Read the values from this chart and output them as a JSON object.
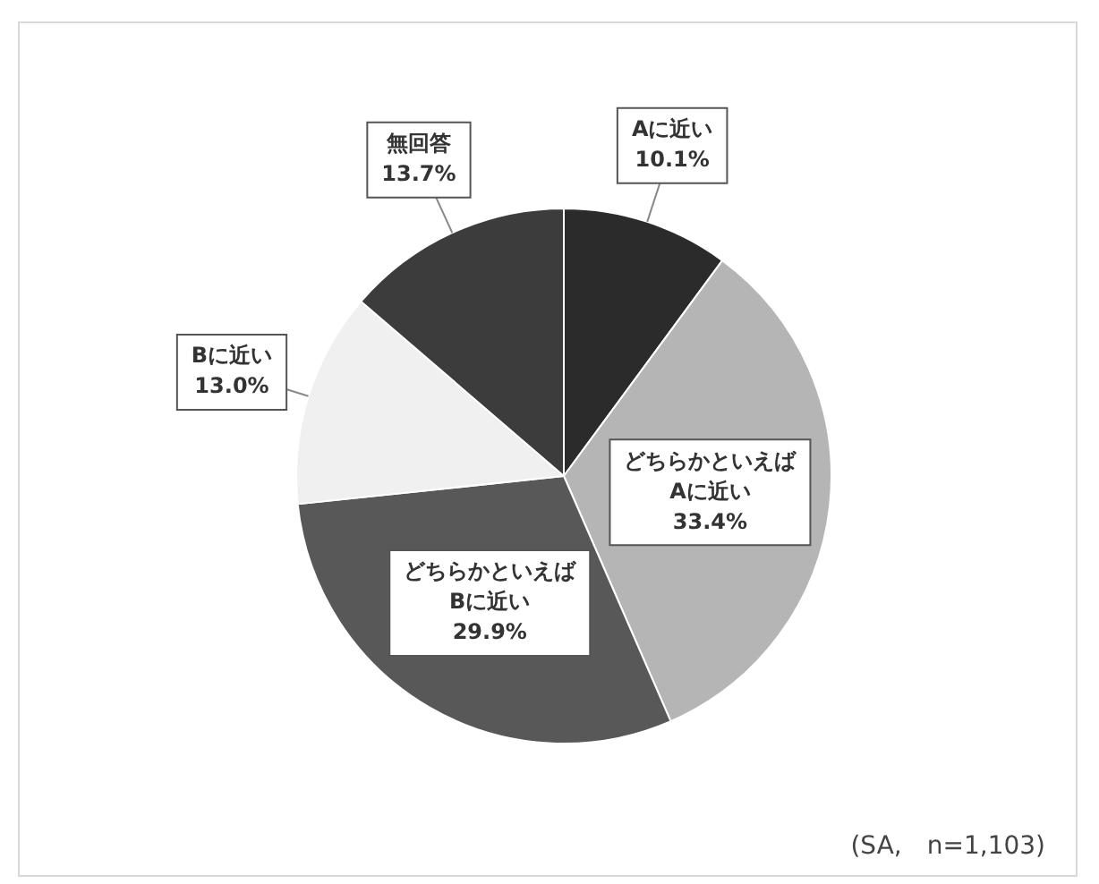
{
  "chart_data": {
    "type": "pie",
    "categories": [
      "Aに近い",
      "どちらかといえばAに近い",
      "どちらかといえばBに近い",
      "Bに近い",
      "無回答"
    ],
    "values": [
      10.1,
      33.4,
      29.9,
      13.0,
      13.7
    ],
    "colors": [
      "#2b2b2b",
      "#b5b5b5",
      "#585858",
      "#f0f0f0",
      "#3c3c3c"
    ],
    "value_labels": [
      "10.1%",
      "33.4%",
      "29.9%",
      "13.0%",
      "13.7%"
    ],
    "legend": false,
    "annotations": [
      "(SA,　n=1,103)"
    ]
  }
}
